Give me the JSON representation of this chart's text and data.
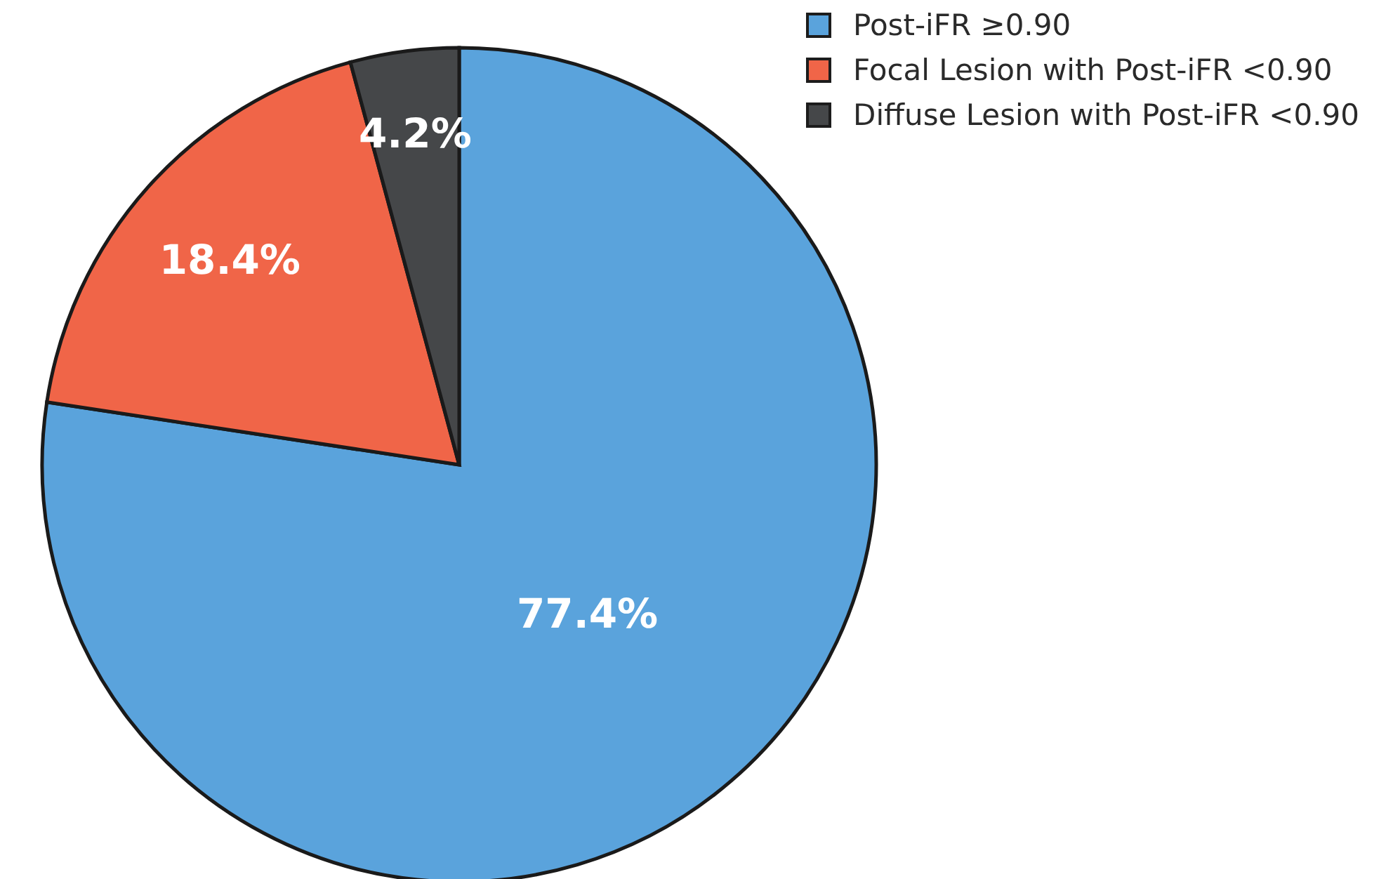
{
  "chart_data": {
    "type": "pie",
    "categories": [
      "Post-iFR ≥0.90",
      "Focal Lesion with Post-iFR <0.90",
      "Diffuse Lesion with Post-iFR <0.90"
    ],
    "values": [
      77.4,
      18.4,
      4.2
    ],
    "colors": [
      "#5aa3dc",
      "#f06548",
      "#454749"
    ],
    "value_labels": [
      "77.4%",
      "18.4%",
      "4.2%"
    ],
    "legend": "top right"
  }
}
